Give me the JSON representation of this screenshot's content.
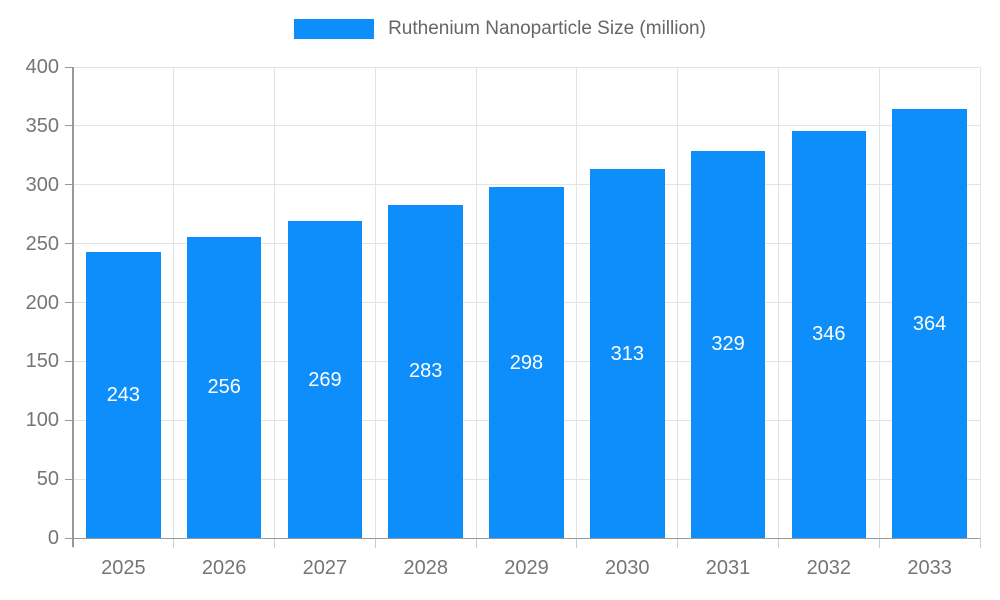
{
  "legend": {
    "label": "Ruthenium Nanoparticle Size (million)"
  },
  "chart_data": {
    "type": "bar",
    "title": "Ruthenium Nanoparticle Size (million)",
    "categories": [
      "2025",
      "2026",
      "2027",
      "2028",
      "2029",
      "2030",
      "2031",
      "2032",
      "2033"
    ],
    "values": [
      243,
      256,
      269,
      283,
      298,
      313,
      329,
      346,
      364
    ],
    "xlabel": "",
    "ylabel": "",
    "ylim": [
      0,
      400
    ],
    "ytick_step": 50,
    "grid": true,
    "legend_position": "top",
    "value_labels": "inside-center",
    "colors": {
      "bar": "#0d8efa",
      "value_label": "#ffffff",
      "axis_text": "#757575",
      "legend_text": "#666666",
      "grid_line": "#e4e4e4",
      "axis_line": "#999999",
      "tick_line": "#cccccc",
      "background": "#ffffff"
    }
  }
}
